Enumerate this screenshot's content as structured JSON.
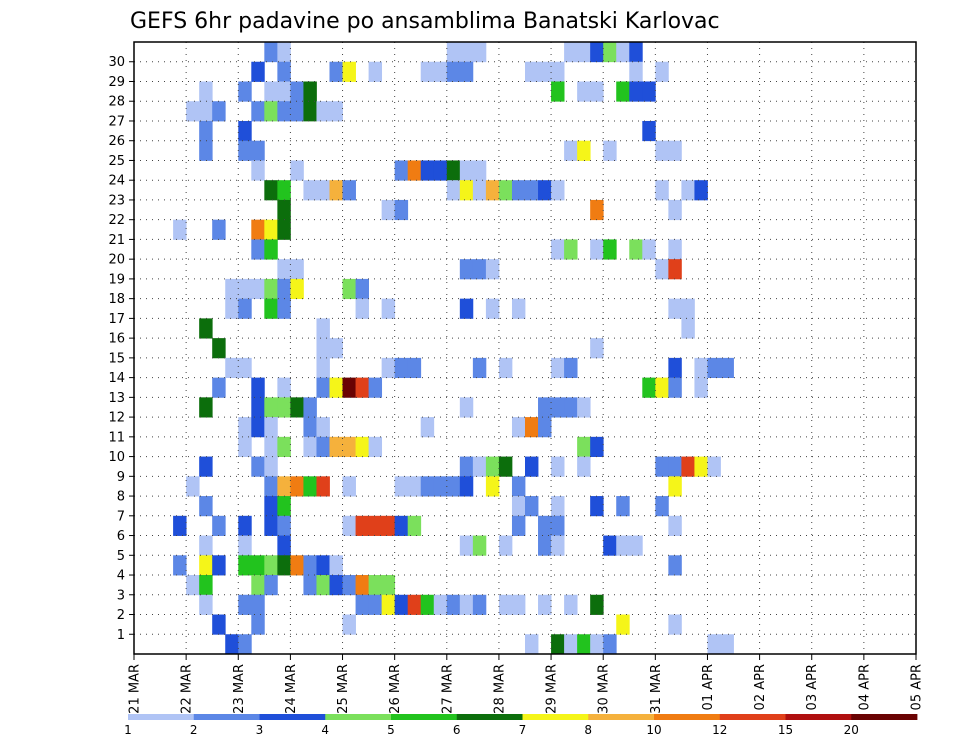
{
  "chart_data": {
    "type": "heatmap",
    "title": "GEFS 6hr padavine po ansamblima Banatski Karlovac",
    "x_ticks": [
      "21 MAR",
      "22 MAR",
      "23 MAR",
      "24 MAR",
      "25 MAR",
      "26 MAR",
      "27 MAR",
      "28 MAR",
      "29 MAR",
      "30 MAR",
      "31 MAR",
      "01 APR",
      "02 APR",
      "03 APR",
      "04 APR",
      "05 APR"
    ],
    "y_ticks": [
      "1",
      "2",
      "3",
      "4",
      "5",
      "6",
      "7",
      "8",
      "9",
      "10",
      "11",
      "12",
      "13",
      "14",
      "15",
      "16",
      "17",
      "18",
      "19",
      "20",
      "21",
      "22",
      "23",
      "24",
      "25",
      "26",
      "27",
      "28",
      "29",
      "30"
    ],
    "x_steps_per_day": 4,
    "grid": true,
    "legend": {
      "position": "bottom",
      "labels": [
        "1",
        "2",
        "3",
        "4",
        "5",
        "6",
        "7",
        "8",
        "10",
        "12",
        "15",
        "20"
      ],
      "colors": [
        "#b0c4f5",
        "#5c87e6",
        "#1f4fd9",
        "#7be05c",
        "#22c31e",
        "#0c6e0c",
        "#f5f519",
        "#f5b13c",
        "#f07c12",
        "#e0401a",
        "#b00f0f",
        "#6a0303"
      ]
    },
    "cells": [
      [
        10,
        30,
        1
      ],
      [
        11,
        30,
        0
      ],
      [
        24,
        30,
        0
      ],
      [
        25,
        30,
        0
      ],
      [
        26,
        30,
        0
      ],
      [
        33,
        30,
        0
      ],
      [
        34,
        30,
        0
      ],
      [
        35,
        30,
        2
      ],
      [
        36,
        30,
        3
      ],
      [
        37,
        30,
        0
      ],
      [
        38,
        30,
        2
      ],
      [
        9,
        29,
        2
      ],
      [
        11,
        29,
        1
      ],
      [
        15,
        29,
        1
      ],
      [
        16,
        29,
        6
      ],
      [
        18,
        29,
        0
      ],
      [
        22,
        29,
        0
      ],
      [
        23,
        29,
        0
      ],
      [
        24,
        29,
        1
      ],
      [
        25,
        29,
        1
      ],
      [
        30,
        29,
        0
      ],
      [
        31,
        29,
        0
      ],
      [
        32,
        29,
        0
      ],
      [
        38,
        29,
        0
      ],
      [
        40,
        29,
        0
      ],
      [
        5,
        28,
        0
      ],
      [
        8,
        28,
        1
      ],
      [
        10,
        28,
        0
      ],
      [
        11,
        28,
        0
      ],
      [
        12,
        28,
        1
      ],
      [
        13,
        28,
        5
      ],
      [
        32,
        28,
        4
      ],
      [
        34,
        28,
        0
      ],
      [
        35,
        28,
        0
      ],
      [
        37,
        28,
        4
      ],
      [
        38,
        28,
        2
      ],
      [
        39,
        28,
        2
      ],
      [
        4,
        27,
        0
      ],
      [
        5,
        27,
        0
      ],
      [
        6,
        27,
        1
      ],
      [
        9,
        27,
        1
      ],
      [
        10,
        27,
        3
      ],
      [
        11,
        27,
        1
      ],
      [
        12,
        27,
        1
      ],
      [
        13,
        27,
        5
      ],
      [
        14,
        27,
        0
      ],
      [
        15,
        27,
        0
      ],
      [
        5,
        26,
        1
      ],
      [
        8,
        26,
        2
      ],
      [
        39,
        26,
        2
      ],
      [
        5,
        25,
        1
      ],
      [
        8,
        25,
        1
      ],
      [
        9,
        25,
        1
      ],
      [
        33,
        25,
        0
      ],
      [
        34,
        25,
        6
      ],
      [
        36,
        25,
        0
      ],
      [
        40,
        25,
        0
      ],
      [
        41,
        25,
        0
      ],
      [
        9,
        24,
        0
      ],
      [
        12,
        24,
        0
      ],
      [
        20,
        24,
        1
      ],
      [
        21,
        24,
        8
      ],
      [
        22,
        24,
        2
      ],
      [
        23,
        24,
        2
      ],
      [
        24,
        24,
        5
      ],
      [
        25,
        24,
        0
      ],
      [
        26,
        24,
        0
      ],
      [
        10,
        23,
        5
      ],
      [
        11,
        23,
        4
      ],
      [
        13,
        23,
        0
      ],
      [
        14,
        23,
        0
      ],
      [
        15,
        23,
        7
      ],
      [
        16,
        23,
        1
      ],
      [
        24,
        23,
        0
      ],
      [
        25,
        23,
        6
      ],
      [
        26,
        23,
        0
      ],
      [
        27,
        23,
        7
      ],
      [
        28,
        23,
        3
      ],
      [
        29,
        23,
        1
      ],
      [
        30,
        23,
        1
      ],
      [
        31,
        23,
        2
      ],
      [
        32,
        23,
        0
      ],
      [
        40,
        23,
        0
      ],
      [
        42,
        23,
        0
      ],
      [
        43,
        23,
        2
      ],
      [
        11,
        22,
        5
      ],
      [
        19,
        22,
        0
      ],
      [
        20,
        22,
        1
      ],
      [
        41,
        22,
        0
      ],
      [
        35,
        22,
        8
      ],
      [
        3,
        21,
        0
      ],
      [
        6,
        21,
        1
      ],
      [
        9,
        21,
        8
      ],
      [
        10,
        21,
        6
      ],
      [
        11,
        21,
        5
      ],
      [
        9,
        20,
        1
      ],
      [
        10,
        20,
        4
      ],
      [
        32,
        20,
        0
      ],
      [
        33,
        20,
        3
      ],
      [
        35,
        20,
        0
      ],
      [
        36,
        20,
        4
      ],
      [
        38,
        20,
        3
      ],
      [
        39,
        20,
        0
      ],
      [
        41,
        20,
        0
      ],
      [
        11,
        19,
        0
      ],
      [
        12,
        19,
        0
      ],
      [
        25,
        19,
        1
      ],
      [
        26,
        19,
        1
      ],
      [
        27,
        19,
        0
      ],
      [
        40,
        19,
        0
      ],
      [
        41,
        19,
        9
      ],
      [
        7,
        18,
        0
      ],
      [
        8,
        18,
        0
      ],
      [
        9,
        18,
        0
      ],
      [
        10,
        18,
        3
      ],
      [
        11,
        18,
        1
      ],
      [
        12,
        18,
        6
      ],
      [
        16,
        18,
        3
      ],
      [
        17,
        18,
        1
      ],
      [
        7,
        17,
        0
      ],
      [
        8,
        17,
        1
      ],
      [
        10,
        17,
        4
      ],
      [
        11,
        17,
        1
      ],
      [
        17,
        17,
        0
      ],
      [
        19,
        17,
        0
      ],
      [
        25,
        17,
        2
      ],
      [
        27,
        17,
        0
      ],
      [
        29,
        17,
        0
      ],
      [
        41,
        17,
        0
      ],
      [
        42,
        17,
        0
      ],
      [
        5,
        16,
        5
      ],
      [
        14,
        16,
        0
      ],
      [
        42,
        16,
        0
      ],
      [
        6,
        15,
        5
      ],
      [
        14,
        15,
        0
      ],
      [
        15,
        15,
        0
      ],
      [
        35,
        15,
        0
      ],
      [
        7,
        14,
        0
      ],
      [
        8,
        14,
        0
      ],
      [
        14,
        14,
        0
      ],
      [
        19,
        14,
        0
      ],
      [
        20,
        14,
        1
      ],
      [
        21,
        14,
        1
      ],
      [
        26,
        14,
        1
      ],
      [
        28,
        14,
        0
      ],
      [
        32,
        14,
        0
      ],
      [
        33,
        14,
        1
      ],
      [
        41,
        14,
        2
      ],
      [
        43,
        14,
        0
      ],
      [
        44,
        14,
        1
      ],
      [
        45,
        14,
        1
      ],
      [
        6,
        13,
        1
      ],
      [
        9,
        13,
        2
      ],
      [
        11,
        13,
        0
      ],
      [
        14,
        13,
        1
      ],
      [
        15,
        13,
        6
      ],
      [
        16,
        13,
        11
      ],
      [
        17,
        13,
        9
      ],
      [
        18,
        13,
        1
      ],
      [
        39,
        13,
        4
      ],
      [
        40,
        13,
        6
      ],
      [
        41,
        13,
        1
      ],
      [
        43,
        13,
        0
      ],
      [
        5,
        12,
        5
      ],
      [
        9,
        12,
        2
      ],
      [
        10,
        12,
        3
      ],
      [
        11,
        12,
        3
      ],
      [
        12,
        12,
        5
      ],
      [
        13,
        12,
        1
      ],
      [
        25,
        12,
        0
      ],
      [
        31,
        12,
        1
      ],
      [
        32,
        12,
        1
      ],
      [
        33,
        12,
        1
      ],
      [
        34,
        12,
        0
      ],
      [
        8,
        11,
        0
      ],
      [
        9,
        11,
        2
      ],
      [
        10,
        11,
        0
      ],
      [
        13,
        11,
        1
      ],
      [
        14,
        11,
        0
      ],
      [
        22,
        11,
        0
      ],
      [
        29,
        11,
        0
      ],
      [
        30,
        11,
        8
      ],
      [
        31,
        11,
        1
      ],
      [
        8,
        10,
        0
      ],
      [
        10,
        10,
        0
      ],
      [
        11,
        10,
        3
      ],
      [
        13,
        10,
        0
      ],
      [
        14,
        10,
        1
      ],
      [
        15,
        10,
        7
      ],
      [
        16,
        10,
        7
      ],
      [
        17,
        10,
        6
      ],
      [
        18,
        10,
        0
      ],
      [
        34,
        10,
        3
      ],
      [
        35,
        10,
        2
      ],
      [
        5,
        9,
        2
      ],
      [
        9,
        9,
        1
      ],
      [
        10,
        9,
        0
      ],
      [
        25,
        9,
        1
      ],
      [
        26,
        9,
        0
      ],
      [
        27,
        9,
        3
      ],
      [
        28,
        9,
        5
      ],
      [
        30,
        9,
        2
      ],
      [
        32,
        9,
        0
      ],
      [
        34,
        9,
        0
      ],
      [
        40,
        9,
        1
      ],
      [
        41,
        9,
        1
      ],
      [
        42,
        9,
        9
      ],
      [
        43,
        9,
        6
      ],
      [
        44,
        9,
        0
      ],
      [
        4,
        8,
        0
      ],
      [
        10,
        8,
        1
      ],
      [
        11,
        8,
        7
      ],
      [
        12,
        8,
        8
      ],
      [
        13,
        8,
        4
      ],
      [
        14,
        8,
        9
      ],
      [
        16,
        8,
        0
      ],
      [
        20,
        8,
        0
      ],
      [
        21,
        8,
        0
      ],
      [
        22,
        8,
        1
      ],
      [
        23,
        8,
        1
      ],
      [
        24,
        8,
        1
      ],
      [
        25,
        8,
        2
      ],
      [
        27,
        8,
        6
      ],
      [
        29,
        8,
        1
      ],
      [
        41,
        8,
        6
      ],
      [
        5,
        7,
        1
      ],
      [
        10,
        7,
        2
      ],
      [
        11,
        7,
        4
      ],
      [
        29,
        7,
        0
      ],
      [
        30,
        7,
        1
      ],
      [
        32,
        7,
        0
      ],
      [
        35,
        7,
        2
      ],
      [
        37,
        7,
        1
      ],
      [
        40,
        7,
        1
      ],
      [
        3,
        6,
        2
      ],
      [
        6,
        6,
        1
      ],
      [
        8,
        6,
        2
      ],
      [
        10,
        6,
        2
      ],
      [
        11,
        6,
        1
      ],
      [
        16,
        6,
        0
      ],
      [
        17,
        6,
        9
      ],
      [
        18,
        6,
        9
      ],
      [
        19,
        6,
        9
      ],
      [
        20,
        6,
        2
      ],
      [
        21,
        6,
        3
      ],
      [
        29,
        6,
        1
      ],
      [
        31,
        6,
        1
      ],
      [
        32,
        6,
        1
      ],
      [
        41,
        6,
        0
      ],
      [
        5,
        5,
        0
      ],
      [
        8,
        5,
        0
      ],
      [
        11,
        5,
        2
      ],
      [
        25,
        5,
        0
      ],
      [
        26,
        5,
        3
      ],
      [
        28,
        5,
        0
      ],
      [
        31,
        5,
        1
      ],
      [
        32,
        5,
        0
      ],
      [
        36,
        5,
        2
      ],
      [
        37,
        5,
        0
      ],
      [
        38,
        5,
        0
      ],
      [
        3,
        4,
        1
      ],
      [
        5,
        4,
        6
      ],
      [
        6,
        4,
        2
      ],
      [
        8,
        4,
        4
      ],
      [
        9,
        4,
        4
      ],
      [
        10,
        4,
        3
      ],
      [
        11,
        4,
        5
      ],
      [
        12,
        4,
        8
      ],
      [
        13,
        4,
        1
      ],
      [
        14,
        4,
        2
      ],
      [
        15,
        4,
        0
      ],
      [
        41,
        4,
        1
      ],
      [
        4,
        3,
        0
      ],
      [
        5,
        3,
        4
      ],
      [
        9,
        3,
        3
      ],
      [
        10,
        3,
        1
      ],
      [
        13,
        3,
        1
      ],
      [
        14,
        3,
        3
      ],
      [
        15,
        3,
        2
      ],
      [
        16,
        3,
        1
      ],
      [
        17,
        3,
        8
      ],
      [
        18,
        3,
        3
      ],
      [
        19,
        3,
        3
      ],
      [
        5,
        2,
        0
      ],
      [
        8,
        2,
        1
      ],
      [
        9,
        2,
        1
      ],
      [
        17,
        2,
        1
      ],
      [
        18,
        2,
        1
      ],
      [
        19,
        2,
        6
      ],
      [
        20,
        2,
        2
      ],
      [
        21,
        2,
        9
      ],
      [
        22,
        2,
        4
      ],
      [
        23,
        2,
        0
      ],
      [
        24,
        2,
        1
      ],
      [
        25,
        2,
        0
      ],
      [
        26,
        2,
        1
      ],
      [
        28,
        2,
        0
      ],
      [
        29,
        2,
        0
      ],
      [
        31,
        2,
        0
      ],
      [
        33,
        2,
        0
      ],
      [
        35,
        2,
        5
      ],
      [
        6,
        1,
        2
      ],
      [
        9,
        1,
        1
      ],
      [
        16,
        1,
        0
      ],
      [
        37,
        1,
        6
      ],
      [
        41,
        1,
        0
      ],
      [
        7,
        0,
        2
      ],
      [
        8,
        0,
        1
      ],
      [
        30,
        0,
        0
      ],
      [
        32,
        0,
        5
      ],
      [
        33,
        0,
        0
      ],
      [
        34,
        0,
        4
      ],
      [
        35,
        0,
        0
      ],
      [
        36,
        0,
        1
      ],
      [
        44,
        0,
        0
      ],
      [
        45,
        0,
        0
      ]
    ]
  }
}
